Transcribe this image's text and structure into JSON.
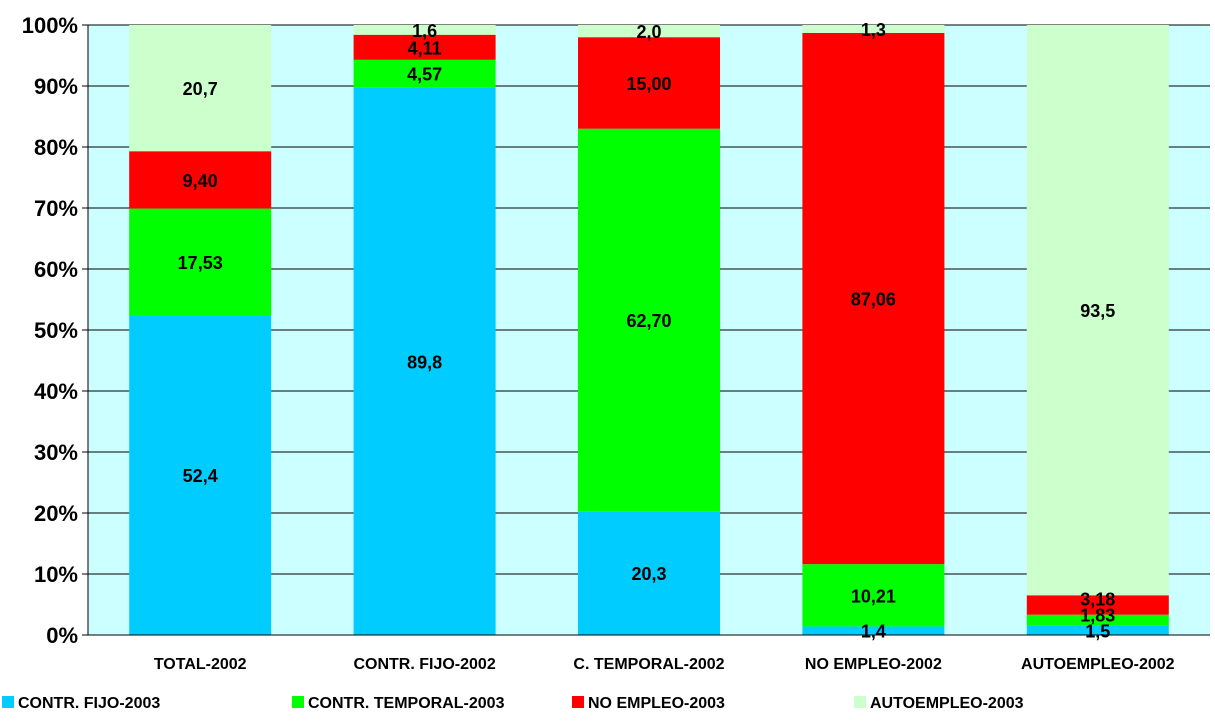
{
  "chart_data": {
    "type": "bar",
    "stacked": "percent",
    "categories": [
      "TOTAL-2002",
      "CONTR. FIJO-2002",
      "C. TEMPORAL-2002",
      "NO EMPLEO-2002",
      "AUTOEMPLEO-2002"
    ],
    "series": [
      {
        "name": "CONTR. FIJO-2003",
        "color": "#00CCFF",
        "values": [
          52.4,
          89.8,
          20.3,
          1.4,
          1.5
        ],
        "labels": [
          "52,4",
          "89,8",
          "20,3",
          "1,4",
          "1,5"
        ]
      },
      {
        "name": "CONTR. TEMPORAL-2003",
        "color": "#00FF00",
        "values": [
          17.53,
          4.57,
          62.7,
          10.21,
          1.83
        ],
        "labels": [
          "17,53",
          "4,57",
          "62,70",
          "10,21",
          "1,83"
        ]
      },
      {
        "name": "NO EMPLEO-2003",
        "color": "#FF0000",
        "values": [
          9.4,
          4.11,
          15.0,
          87.06,
          3.18
        ],
        "labels": [
          "9,40",
          "4,11",
          "15,00",
          "87,06",
          "3,18"
        ]
      },
      {
        "name": "AUTOEMPLEO-2003",
        "color": "#CCFFCC",
        "values": [
          20.7,
          1.6,
          2.0,
          1.3,
          93.5
        ],
        "labels": [
          "20,7",
          "1,6",
          "2,0",
          "1,3",
          "93,5"
        ]
      }
    ],
    "ylim": [
      0,
      100
    ],
    "yticks": [
      "0%",
      "10%",
      "20%",
      "30%",
      "40%",
      "50%",
      "60%",
      "70%",
      "80%",
      "90%",
      "100%"
    ],
    "plot_background": "#CCFFFF",
    "grid": true,
    "legend_position": "bottom"
  }
}
